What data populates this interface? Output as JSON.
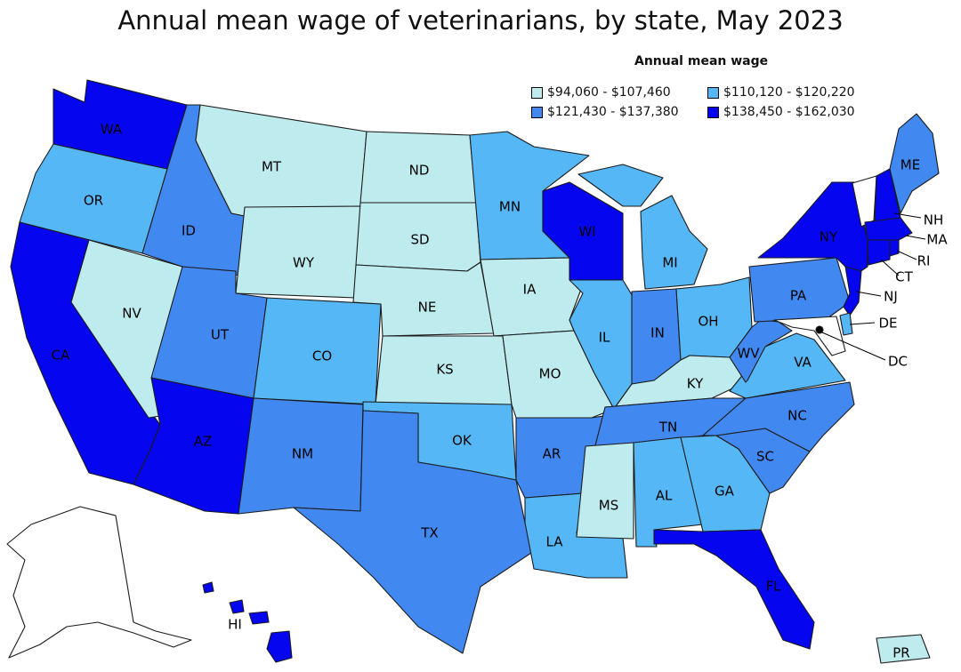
{
  "title": "Annual mean wage of veterinarians, by state, May 2023",
  "legend": {
    "title": "Annual mean wage",
    "items": [
      {
        "range": "$94,060 - $107,460",
        "color": "#BEEBEE"
      },
      {
        "range": "$110,120 - $120,220",
        "color": "#55B7F5"
      },
      {
        "range": "$121,430 - $137,380",
        "color": "#4189F1"
      },
      {
        "range": "$138,450 - $162,030",
        "color": "#0505F0"
      }
    ]
  },
  "no_data_color": "#FFFFFF",
  "states": [
    {
      "abbr": "WA",
      "bin": 3
    },
    {
      "abbr": "OR",
      "bin": 1
    },
    {
      "abbr": "CA",
      "bin": 3
    },
    {
      "abbr": "NV",
      "bin": 0
    },
    {
      "abbr": "ID",
      "bin": 2
    },
    {
      "abbr": "MT",
      "bin": 0
    },
    {
      "abbr": "WY",
      "bin": 0
    },
    {
      "abbr": "UT",
      "bin": 2
    },
    {
      "abbr": "AZ",
      "bin": 3
    },
    {
      "abbr": "CO",
      "bin": 1
    },
    {
      "abbr": "NM",
      "bin": 2
    },
    {
      "abbr": "ND",
      "bin": 0
    },
    {
      "abbr": "SD",
      "bin": 0
    },
    {
      "abbr": "NE",
      "bin": 0
    },
    {
      "abbr": "KS",
      "bin": 0
    },
    {
      "abbr": "OK",
      "bin": 1
    },
    {
      "abbr": "TX",
      "bin": 2
    },
    {
      "abbr": "MN",
      "bin": 1
    },
    {
      "abbr": "IA",
      "bin": 0
    },
    {
      "abbr": "MO",
      "bin": 0
    },
    {
      "abbr": "AR",
      "bin": 2
    },
    {
      "abbr": "LA",
      "bin": 1
    },
    {
      "abbr": "WI",
      "bin": 3
    },
    {
      "abbr": "IL",
      "bin": 1
    },
    {
      "abbr": "MI",
      "bin": 1
    },
    {
      "abbr": "IN",
      "bin": 2
    },
    {
      "abbr": "OH",
      "bin": 1
    },
    {
      "abbr": "KY",
      "bin": 0
    },
    {
      "abbr": "TN",
      "bin": 2
    },
    {
      "abbr": "MS",
      "bin": 0
    },
    {
      "abbr": "AL",
      "bin": 1
    },
    {
      "abbr": "GA",
      "bin": 1
    },
    {
      "abbr": "FL",
      "bin": 3
    },
    {
      "abbr": "SC",
      "bin": 2
    },
    {
      "abbr": "NC",
      "bin": 2
    },
    {
      "abbr": "VA",
      "bin": 1
    },
    {
      "abbr": "WV",
      "bin": 2
    },
    {
      "abbr": "PA",
      "bin": 2
    },
    {
      "abbr": "NY",
      "bin": 3
    },
    {
      "abbr": "VT",
      "bin": null
    },
    {
      "abbr": "NH",
      "bin": 3
    },
    {
      "abbr": "ME",
      "bin": 2
    },
    {
      "abbr": "MA",
      "bin": 3
    },
    {
      "abbr": "RI",
      "bin": 3
    },
    {
      "abbr": "CT",
      "bin": 3
    },
    {
      "abbr": "NJ",
      "bin": 3
    },
    {
      "abbr": "DE",
      "bin": 1
    },
    {
      "abbr": "MD",
      "bin": null
    },
    {
      "abbr": "DC",
      "bin": null
    },
    {
      "abbr": "AK",
      "bin": null
    },
    {
      "abbr": "HI",
      "bin": 3
    },
    {
      "abbr": "PR",
      "bin": 0
    }
  ]
}
